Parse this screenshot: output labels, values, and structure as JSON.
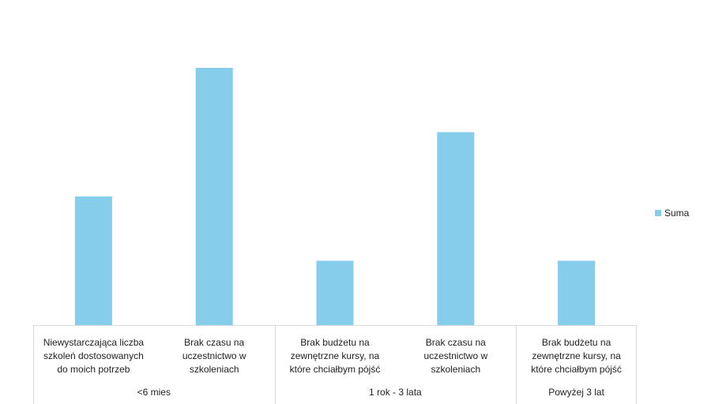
{
  "chart_data": {
    "type": "bar",
    "categories": [
      "Niewystarczająca liczba szkoleń dostosowanych do moich potrzeb",
      "Brak czasu na uczestnictwo w szkoleniach",
      "Brak budżetu na zewnętrzne kursy, na które chciałbym pójść",
      "Brak czasu na uczestnictwo w szkoleniach",
      "Brak budżetu na zewnętrzne kursy, na które chciałbym pójść"
    ],
    "category_lines": [
      [
        "Niewystarczająca liczba",
        "szkoleń dostosowanych",
        "do moich potrzeb"
      ],
      [
        "Brak czasu na",
        "uczestnictwo w",
        "szkoleniach"
      ],
      [
        "Brak budżetu na",
        "zewnętrzne kursy, na",
        "które chciałbym pójść"
      ],
      [
        "Brak czasu na",
        "uczestnictwo w",
        "szkoleniach"
      ],
      [
        "Brak budżetu na",
        "zewnętrzne kursy, na",
        "które chciałbym pójść"
      ]
    ],
    "groups": [
      {
        "label": "<6 mies",
        "span": 2
      },
      {
        "label": "1 rok - 3 lata",
        "span": 2
      },
      {
        "label": "Powyżej 3 lat",
        "span": 1
      }
    ],
    "series": [
      {
        "name": "Suma",
        "values": [
          2,
          4,
          1,
          3,
          1
        ]
      }
    ],
    "ylim": [
      0,
      4
    ],
    "title": "",
    "xlabel": "",
    "ylabel": "",
    "legend_position": "right",
    "grid": false,
    "y_axis_visible": false,
    "bar_color": "#86CCEB",
    "axis_color": "#D9D9D9"
  }
}
